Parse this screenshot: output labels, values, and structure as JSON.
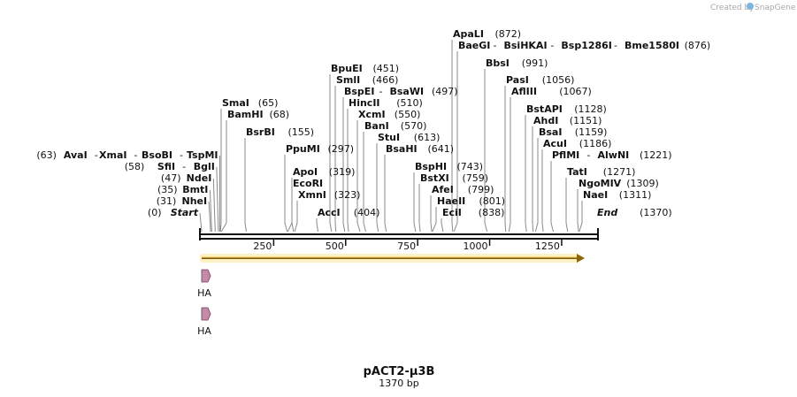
{
  "credit": {
    "text": "Created by",
    "brand": "SnapGene"
  },
  "title": "pACT2-μ3B",
  "subtitle": "1370 bp",
  "sequence_length": 1370,
  "colors": {
    "orf": "#f0c24a",
    "orf_outline": "#7a5a10",
    "feature": "#c58aa6",
    "backbone": "#111111"
  },
  "axis_ticks": [
    {
      "value": 250,
      "label": "250"
    },
    {
      "value": 500,
      "label": "500"
    },
    {
      "value": 750,
      "label": "750"
    },
    {
      "value": 1000,
      "label": "1000"
    },
    {
      "value": 1250,
      "label": "1250"
    }
  ],
  "features": [
    {
      "name": "HA",
      "label": "HA",
      "pos": 0
    },
    {
      "name": "HA",
      "label": "HA",
      "pos": 0
    }
  ],
  "left_labels": [
    {
      "pos": 63,
      "pos_text": "(63)",
      "enzymes": [
        "AvaI",
        "XmaI",
        "BsoBI",
        "TspMI"
      ]
    },
    {
      "pos": 58,
      "pos_text": "(58)",
      "enzymes": [
        "SfiI",
        "BglI"
      ]
    },
    {
      "pos": 47,
      "pos_text": "(47)",
      "enzymes": [
        "NdeI"
      ]
    },
    {
      "pos": 35,
      "pos_text": "(35)",
      "enzymes": [
        "BmtI"
      ]
    },
    {
      "pos": 31,
      "pos_text": "(31)",
      "enzymes": [
        "NheI"
      ]
    },
    {
      "pos": 0,
      "pos_text": "(0)",
      "enzymes": [
        "Start"
      ],
      "italic": true
    }
  ],
  "right_labels": [
    {
      "pos": 872,
      "pos_text": "(872)",
      "enzymes": [
        "ApaLI"
      ]
    },
    {
      "pos": 876,
      "pos_text": "(876)",
      "enzymes": [
        "BaeGI",
        "BsiHKAI",
        "Bsp1286I",
        "Bme1580I"
      ]
    },
    {
      "pos": 991,
      "pos_text": "(991)",
      "enzymes": [
        "BbsI"
      ]
    },
    {
      "pos": 451,
      "pos_text": "(451)",
      "enzymes": [
        "BpuEI"
      ]
    },
    {
      "pos": 466,
      "pos_text": "(466)",
      "enzymes": [
        "SmlI"
      ]
    },
    {
      "pos": 497,
      "pos_text": "(497)",
      "enzymes": [
        "BspEI",
        "BsaWI"
      ]
    },
    {
      "pos": 1056,
      "pos_text": "(1056)",
      "enzymes": [
        "PasI"
      ]
    },
    {
      "pos": 1067,
      "pos_text": "(1067)",
      "enzymes": [
        "AflIII"
      ]
    },
    {
      "pos": 65,
      "pos_text": "(65)",
      "enzymes": [
        "SmaI"
      ]
    },
    {
      "pos": 510,
      "pos_text": "(510)",
      "enzymes": [
        "HincII"
      ]
    },
    {
      "pos": 68,
      "pos_text": "(68)",
      "enzymes": [
        "BamHI"
      ]
    },
    {
      "pos": 550,
      "pos_text": "(550)",
      "enzymes": [
        "XcmI"
      ]
    },
    {
      "pos": 1128,
      "pos_text": "(1128)",
      "enzymes": [
        "BstAPI"
      ]
    },
    {
      "pos": 1151,
      "pos_text": "(1151)",
      "enzymes": [
        "AhdI"
      ]
    },
    {
      "pos": 570,
      "pos_text": "(570)",
      "enzymes": [
        "BanI"
      ]
    },
    {
      "pos": 155,
      "pos_text": "(155)",
      "enzymes": [
        "BsrBI"
      ]
    },
    {
      "pos": 1159,
      "pos_text": "(1159)",
      "enzymes": [
        "BsaI"
      ]
    },
    {
      "pos": 613,
      "pos_text": "(613)",
      "enzymes": [
        "StuI"
      ]
    },
    {
      "pos": 1186,
      "pos_text": "(1186)",
      "enzymes": [
        "AcuI"
      ]
    },
    {
      "pos": 297,
      "pos_text": "(297)",
      "enzymes": [
        "PpuMI"
      ]
    },
    {
      "pos": 641,
      "pos_text": "(641)",
      "enzymes": [
        "BsaHI"
      ]
    },
    {
      "pos": 1221,
      "pos_text": "(1221)",
      "enzymes": [
        "PflMI",
        "AlwNI"
      ]
    },
    {
      "pos": 743,
      "pos_text": "(743)",
      "enzymes": [
        "BspHI"
      ]
    },
    {
      "pos": 319,
      "pos_text": "(319)",
      "enzymes": [
        "ApoI"
      ]
    },
    {
      "pos": 1271,
      "pos_text": "(1271)",
      "enzymes": [
        "TatI"
      ]
    },
    {
      "pos": 759,
      "pos_text": "(759)",
      "enzymes": [
        "BstXI"
      ]
    },
    {
      "pos": 1309,
      "pos_text": "(1309)",
      "enzymes": [
        "NgoMIV"
      ]
    },
    {
      "pos": 299,
      "pos_text": "",
      "enzymes": [
        "EcoRI"
      ]
    },
    {
      "pos": 799,
      "pos_text": "(799)",
      "enzymes": [
        "AfeI"
      ]
    },
    {
      "pos": 323,
      "pos_text": "(323)",
      "enzymes": [
        "XmnI"
      ]
    },
    {
      "pos": 1311,
      "pos_text": "(1311)",
      "enzymes": [
        "NaeI"
      ]
    },
    {
      "pos": 801,
      "pos_text": "(801)",
      "enzymes": [
        "HaeII"
      ]
    },
    {
      "pos": 404,
      "pos_text": "(404)",
      "enzymes": [
        "AccI"
      ]
    },
    {
      "pos": 838,
      "pos_text": "(838)",
      "enzymes": [
        "EciI"
      ]
    },
    {
      "pos": 1370,
      "pos_text": "(1370)",
      "enzymes": [
        "End"
      ],
      "italic": true
    }
  ]
}
